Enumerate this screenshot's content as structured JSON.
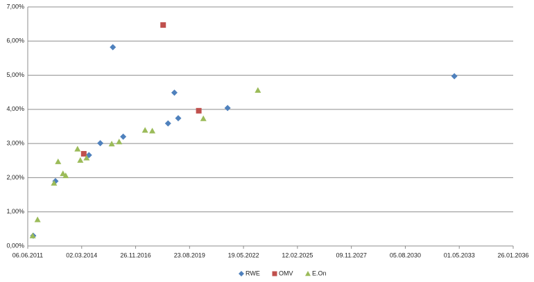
{
  "chart_data": {
    "type": "scatter",
    "xlim": [
      "2011-06-06",
      "2036-01-26"
    ],
    "xticks": [
      {
        "value": "2011-06-06",
        "label": "06.06.2011"
      },
      {
        "value": "2014-03-02",
        "label": "02.03.2014"
      },
      {
        "value": "2016-11-26",
        "label": "26.11.2016"
      },
      {
        "value": "2019-08-23",
        "label": "23.08.2019"
      },
      {
        "value": "2022-05-19",
        "label": "19.05.2022"
      },
      {
        "value": "2025-02-12",
        "label": "12.02.2025"
      },
      {
        "value": "2027-11-09",
        "label": "09.11.2027"
      },
      {
        "value": "2030-08-05",
        "label": "05.08.2030"
      },
      {
        "value": "2033-05-01",
        "label": "01.05.2033"
      },
      {
        "value": "2036-01-26",
        "label": "26.01.2036"
      }
    ],
    "ylim": [
      0,
      7
    ],
    "yticks": [
      {
        "value": 0,
        "label": "0,00%"
      },
      {
        "value": 1,
        "label": "1,00%"
      },
      {
        "value": 2,
        "label": "2,00%"
      },
      {
        "value": 3,
        "label": "3,00%"
      },
      {
        "value": 4,
        "label": "4,00%"
      },
      {
        "value": 5,
        "label": "5,00%"
      },
      {
        "value": 6,
        "label": "6,00%"
      },
      {
        "value": 7,
        "label": "7,00%"
      }
    ],
    "grid": true,
    "legend": "bottom",
    "series": [
      {
        "name": "RWE",
        "color": "#4f81bd",
        "marker": "diamond",
        "x": [
          "2011-09-16",
          "2012-11-01",
          "2014-07-15",
          "2015-02-10",
          "2015-10-01",
          "2016-04-10",
          "2018-07-20",
          "2018-11-15",
          "2019-01-25",
          "2021-07-28",
          "2033-01-30"
        ],
        "values": [
          0.3,
          1.9,
          2.66,
          3.01,
          5.82,
          3.2,
          3.59,
          4.49,
          3.74,
          4.04,
          4.97
        ]
      },
      {
        "name": "OMV",
        "color": "#c0504d",
        "marker": "square",
        "x": [
          "2014-04-10",
          "2018-04-20",
          "2020-02-10"
        ],
        "values": [
          2.7,
          6.47,
          3.96
        ]
      },
      {
        "name": "E.On",
        "color": "#9bbb59",
        "marker": "triangle",
        "x": [
          "2011-09-05",
          "2011-12-05",
          "2012-10-05",
          "2012-12-20",
          "2013-03-20",
          "2013-05-10",
          "2013-12-15",
          "2014-02-05",
          "2014-06-01",
          "2015-09-10",
          "2016-01-25",
          "2017-05-20",
          "2017-10-01",
          "2020-05-05",
          "2023-02-10"
        ],
        "values": [
          0.3,
          0.77,
          1.84,
          2.47,
          2.12,
          2.06,
          2.84,
          2.51,
          2.58,
          2.99,
          3.05,
          3.39,
          3.37,
          3.73,
          4.56
        ]
      }
    ]
  }
}
